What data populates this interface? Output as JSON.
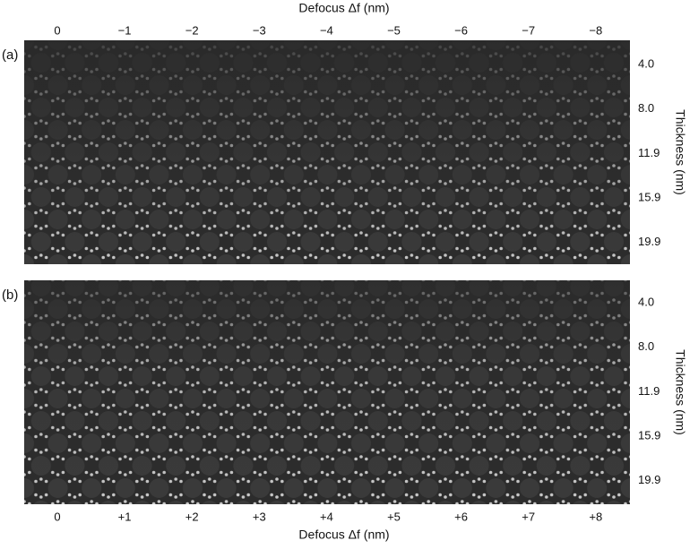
{
  "panels": [
    {
      "label": "(a)",
      "top_axis": {
        "title": "Defocus Δf (nm)",
        "ticks": [
          "0",
          "−1",
          "−2",
          "−3",
          "−4",
          "−5",
          "−6",
          "−7",
          "−8"
        ]
      },
      "right_axis": {
        "title": "Thickness (nm)",
        "ticks": [
          "4.0",
          "8.0",
          "11.9",
          "15.9",
          "19.9"
        ]
      }
    },
    {
      "label": "(b)",
      "bottom_axis": {
        "title": "Defocus Δf (nm)",
        "ticks": [
          "0",
          "+1",
          "+2",
          "+3",
          "+4",
          "+5",
          "+6",
          "+7",
          "+8"
        ]
      },
      "right_axis": {
        "title": "Thickness (nm)",
        "ticks": [
          "4.0",
          "8.0",
          "11.9",
          "15.9",
          "19.9"
        ]
      }
    }
  ]
}
